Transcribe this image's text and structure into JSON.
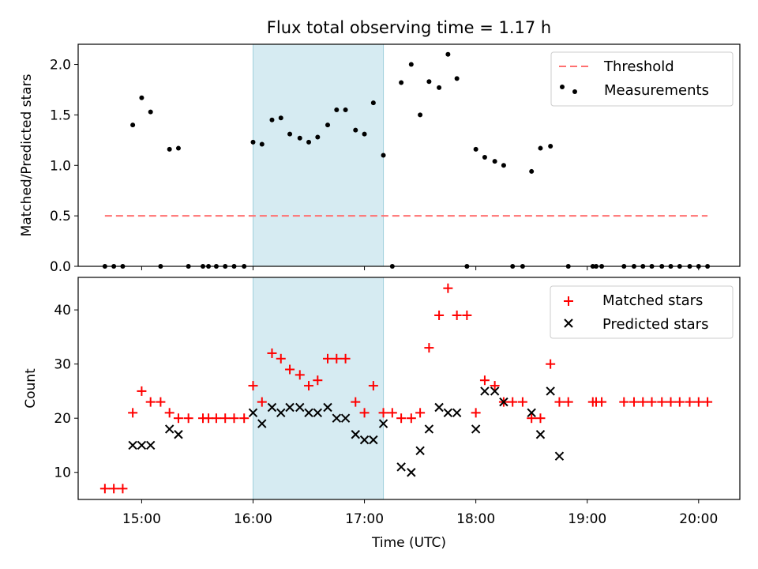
{
  "chart_data": [
    {
      "type": "scatter",
      "title": "Flux total observing time = 1.17 h",
      "xlabel": "",
      "ylabel": "Matched/Predicted stars",
      "ylim": [
        0,
        2.2
      ],
      "xlim_hours": [
        14.43,
        20.37
      ],
      "yticks": [
        0,
        0.5,
        1.0,
        1.5,
        2.0
      ],
      "ytick_labels": [
        "0.0",
        "0.5",
        "1.0",
        "1.5",
        "2.0"
      ],
      "legend_position": "top-right",
      "shaded_interval_hours": [
        16.0,
        17.17
      ],
      "threshold": {
        "name": "Threshold",
        "value": 0.5,
        "x_start": 14.67,
        "x_end": 20.08,
        "color": "#ff7070"
      },
      "series": [
        {
          "name": "Measurements",
          "color": "#000000",
          "points": [
            [
              14.67,
              0
            ],
            [
              14.75,
              0
            ],
            [
              14.83,
              0
            ],
            [
              14.92,
              1.4
            ],
            [
              15.0,
              1.67
            ],
            [
              15.08,
              1.53
            ],
            [
              15.17,
              0
            ],
            [
              15.25,
              1.16
            ],
            [
              15.33,
              1.17
            ],
            [
              15.42,
              0
            ],
            [
              15.55,
              0
            ],
            [
              15.6,
              0
            ],
            [
              15.67,
              0
            ],
            [
              15.75,
              0
            ],
            [
              15.83,
              0
            ],
            [
              15.92,
              0
            ],
            [
              16.0,
              1.23
            ],
            [
              16.08,
              1.21
            ],
            [
              16.17,
              1.45
            ],
            [
              16.25,
              1.47
            ],
            [
              16.33,
              1.31
            ],
            [
              16.42,
              1.27
            ],
            [
              16.5,
              1.23
            ],
            [
              16.58,
              1.28
            ],
            [
              16.67,
              1.4
            ],
            [
              16.75,
              1.55
            ],
            [
              16.83,
              1.55
            ],
            [
              16.92,
              1.35
            ],
            [
              17.0,
              1.31
            ],
            [
              17.08,
              1.62
            ],
            [
              17.17,
              1.1
            ],
            [
              17.25,
              0
            ],
            [
              17.33,
              1.82
            ],
            [
              17.42,
              2.0
            ],
            [
              17.5,
              1.5
            ],
            [
              17.58,
              1.83
            ],
            [
              17.67,
              1.77
            ],
            [
              17.75,
              2.1
            ],
            [
              17.83,
              1.86
            ],
            [
              17.92,
              0
            ],
            [
              18.0,
              1.16
            ],
            [
              18.08,
              1.08
            ],
            [
              18.17,
              1.04
            ],
            [
              18.25,
              1.0
            ],
            [
              18.33,
              0
            ],
            [
              18.42,
              0
            ],
            [
              18.5,
              0.94
            ],
            [
              18.58,
              1.17
            ],
            [
              18.67,
              1.19
            ],
            [
              18.83,
              0
            ],
            [
              19.05,
              0
            ],
            [
              19.08,
              0
            ],
            [
              19.13,
              0
            ],
            [
              19.33,
              0
            ],
            [
              19.42,
              0
            ],
            [
              19.5,
              0
            ],
            [
              19.58,
              0
            ],
            [
              19.67,
              0
            ],
            [
              19.75,
              0
            ],
            [
              19.83,
              0
            ],
            [
              19.92,
              0
            ],
            [
              20.0,
              0
            ],
            [
              20.08,
              0
            ]
          ]
        }
      ]
    },
    {
      "type": "scatter",
      "title": "",
      "xlabel": "Time (UTC)",
      "ylabel": "Count",
      "ylim": [
        5,
        46
      ],
      "xlim_hours": [
        14.43,
        20.37
      ],
      "xticks_hours": [
        15,
        16,
        17,
        18,
        19,
        20
      ],
      "xtick_labels": [
        "15:00",
        "16:00",
        "17:00",
        "18:00",
        "19:00",
        "20:00"
      ],
      "yticks": [
        10,
        20,
        30,
        40
      ],
      "ytick_labels": [
        "10",
        "20",
        "30",
        "40"
      ],
      "legend_position": "top-right",
      "shaded_interval_hours": [
        16.0,
        17.17
      ],
      "series": [
        {
          "name": "Matched stars",
          "marker": "+",
          "color": "#ff0000",
          "points": [
            [
              14.67,
              7
            ],
            [
              14.75,
              7
            ],
            [
              14.83,
              7
            ],
            [
              14.92,
              21
            ],
            [
              15.0,
              25
            ],
            [
              15.08,
              23
            ],
            [
              15.17,
              23
            ],
            [
              15.25,
              21
            ],
            [
              15.33,
              20
            ],
            [
              15.42,
              20
            ],
            [
              15.55,
              20
            ],
            [
              15.6,
              20
            ],
            [
              15.67,
              20
            ],
            [
              15.75,
              20
            ],
            [
              15.83,
              20
            ],
            [
              15.92,
              20
            ],
            [
              16.0,
              26
            ],
            [
              16.08,
              23
            ],
            [
              16.17,
              32
            ],
            [
              16.25,
              31
            ],
            [
              16.33,
              29
            ],
            [
              16.42,
              28
            ],
            [
              16.5,
              26
            ],
            [
              16.58,
              27
            ],
            [
              16.67,
              31
            ],
            [
              16.75,
              31
            ],
            [
              16.83,
              31
            ],
            [
              16.92,
              23
            ],
            [
              17.0,
              21
            ],
            [
              17.08,
              26
            ],
            [
              17.17,
              21
            ],
            [
              17.25,
              21
            ],
            [
              17.33,
              20
            ],
            [
              17.42,
              20
            ],
            [
              17.5,
              21
            ],
            [
              17.58,
              33
            ],
            [
              17.67,
              39
            ],
            [
              17.75,
              44
            ],
            [
              17.83,
              39
            ],
            [
              17.92,
              39
            ],
            [
              18.0,
              21
            ],
            [
              18.08,
              27
            ],
            [
              18.17,
              26
            ],
            [
              18.25,
              23
            ],
            [
              18.33,
              23
            ],
            [
              18.42,
              23
            ],
            [
              18.5,
              20
            ],
            [
              18.58,
              20
            ],
            [
              18.67,
              30
            ],
            [
              18.75,
              23
            ],
            [
              18.83,
              23
            ],
            [
              19.05,
              23
            ],
            [
              19.08,
              23
            ],
            [
              19.13,
              23
            ],
            [
              19.33,
              23
            ],
            [
              19.42,
              23
            ],
            [
              19.5,
              23
            ],
            [
              19.58,
              23
            ],
            [
              19.67,
              23
            ],
            [
              19.75,
              23
            ],
            [
              19.83,
              23
            ],
            [
              19.92,
              23
            ],
            [
              20.0,
              23
            ],
            [
              20.08,
              23
            ]
          ]
        },
        {
          "name": "Predicted stars",
          "marker": "x",
          "color": "#000000",
          "points": [
            [
              14.92,
              15
            ],
            [
              15.0,
              15
            ],
            [
              15.08,
              15
            ],
            [
              15.25,
              18
            ],
            [
              15.33,
              17
            ],
            [
              16.0,
              21
            ],
            [
              16.08,
              19
            ],
            [
              16.17,
              22
            ],
            [
              16.25,
              21
            ],
            [
              16.33,
              22
            ],
            [
              16.42,
              22
            ],
            [
              16.5,
              21
            ],
            [
              16.58,
              21
            ],
            [
              16.67,
              22
            ],
            [
              16.75,
              20
            ],
            [
              16.83,
              20
            ],
            [
              16.92,
              17
            ],
            [
              17.0,
              16
            ],
            [
              17.08,
              16
            ],
            [
              17.17,
              19
            ],
            [
              17.33,
              11
            ],
            [
              17.42,
              10
            ],
            [
              17.5,
              14
            ],
            [
              17.58,
              18
            ],
            [
              17.67,
              22
            ],
            [
              17.75,
              21
            ],
            [
              17.83,
              21
            ],
            [
              18.0,
              18
            ],
            [
              18.08,
              25
            ],
            [
              18.17,
              25
            ],
            [
              18.25,
              23
            ],
            [
              18.5,
              21
            ],
            [
              18.58,
              17
            ],
            [
              18.67,
              25
            ],
            [
              18.75,
              13
            ]
          ]
        }
      ]
    }
  ]
}
